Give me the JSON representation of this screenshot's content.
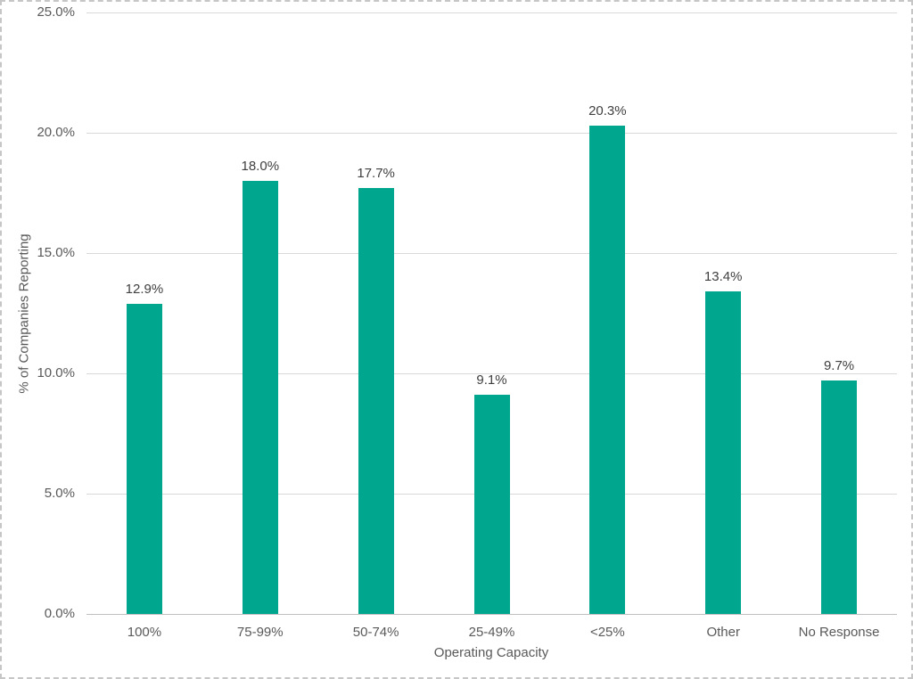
{
  "chart_data": {
    "type": "bar",
    "title": "",
    "xlabel": "Operating Capacity",
    "ylabel": "% of Companies Reporting",
    "categories": [
      "100%",
      "75-99%",
      "50-74%",
      "25-49%",
      "<25%",
      "Other",
      "No Response"
    ],
    "values": [
      12.9,
      18.0,
      17.7,
      9.1,
      20.3,
      13.4,
      9.7
    ],
    "value_labels": [
      "12.9%",
      "18.0%",
      "17.7%",
      "9.1%",
      "20.3%",
      "13.4%",
      "9.7%"
    ],
    "ylim": [
      0,
      25
    ],
    "yticks": [
      {
        "value": 0,
        "label": "0.0%"
      },
      {
        "value": 5,
        "label": "5.0%"
      },
      {
        "value": 10,
        "label": "10.0%"
      },
      {
        "value": 15,
        "label": "15.0%"
      },
      {
        "value": 20,
        "label": "20.0%"
      },
      {
        "value": 25,
        "label": "25.0%"
      }
    ],
    "grid": true,
    "legend": "none",
    "colors": {
      "bar": "#00A78E",
      "axis_label": "#595959",
      "data_label": "#404040",
      "gridline": "#D9D9D9",
      "axis_line": "#C0C0C0",
      "background": "#FFFFFF",
      "border": "#C6C6C6"
    }
  }
}
